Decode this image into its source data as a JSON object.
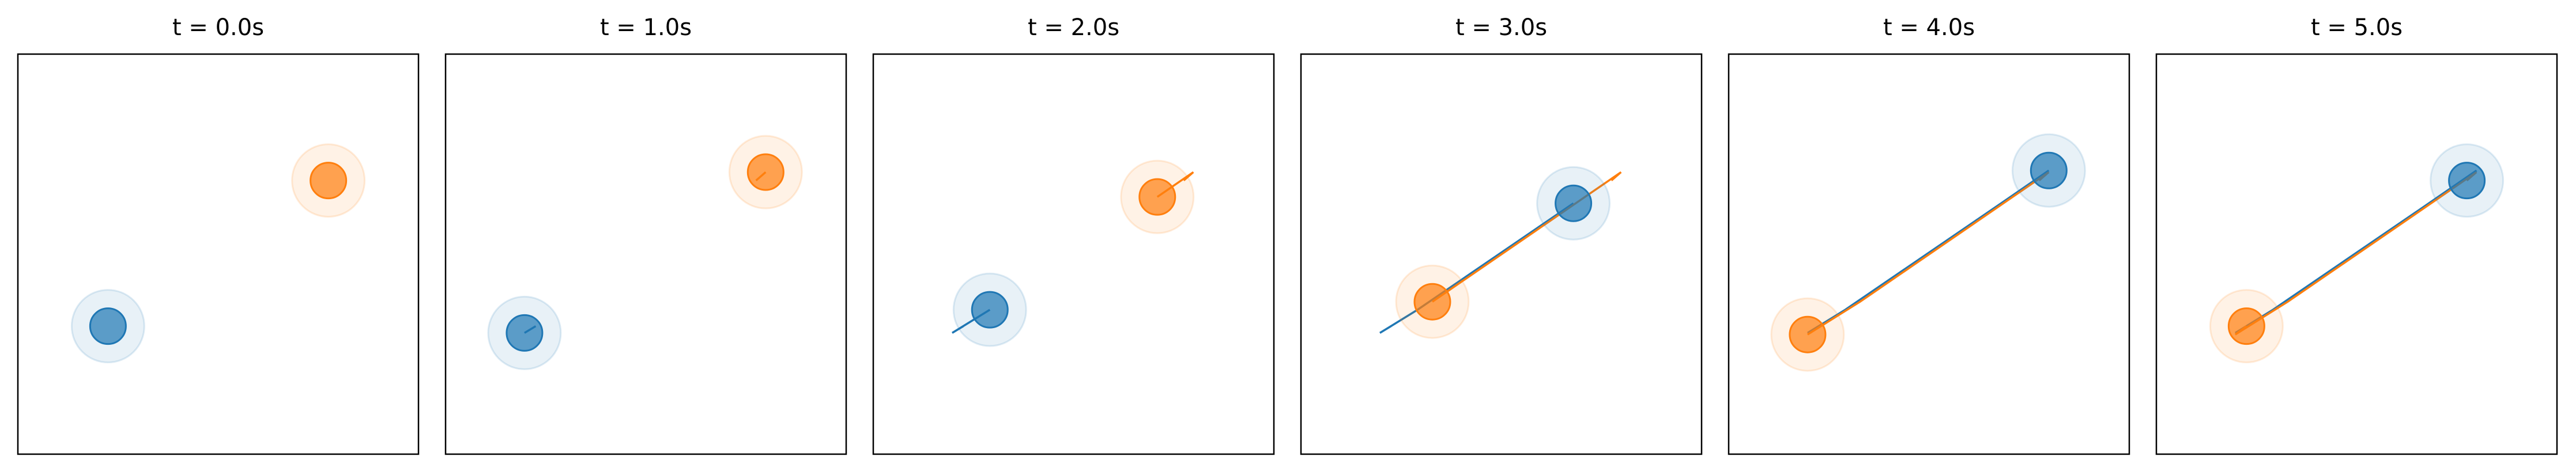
{
  "chart_data": [
    {
      "type": "scatter",
      "title": "t = 0.0s",
      "xlim": [
        0,
        1
      ],
      "ylim": [
        0,
        1
      ],
      "series": [
        {
          "color": "#1f77b4",
          "x": [
            0.225
          ],
          "y": [
            0.32
          ]
        },
        {
          "color": "#ff7f0e",
          "x": [
            0.775
          ],
          "y": [
            0.684
          ]
        }
      ]
    },
    {
      "type": "scatter",
      "title": "t = 1.0s",
      "xlim": [
        0,
        1
      ],
      "ylim": [
        0,
        1
      ],
      "series": [
        {
          "color": "#1f77b4",
          "x": [
            0.225,
            0.197
          ],
          "y": [
            0.32,
            0.303
          ]
        },
        {
          "color": "#ff7f0e",
          "x": [
            0.775,
            0.799
          ],
          "y": [
            0.684,
            0.705
          ]
        }
      ]
    },
    {
      "type": "scatter",
      "title": "t = 2.0s",
      "xlim": [
        0,
        1
      ],
      "ylim": [
        0,
        1
      ],
      "series": [
        {
          "color": "#1f77b4",
          "x": [
            0.225,
            0.197,
            0.291
          ],
          "y": [
            0.32,
            0.303,
            0.361
          ]
        },
        {
          "color": "#ff7f0e",
          "x": [
            0.775,
            0.799,
            0.709
          ],
          "y": [
            0.684,
            0.705,
            0.643
          ]
        }
      ]
    },
    {
      "type": "scatter",
      "title": "t = 3.0s",
      "xlim": [
        0,
        1
      ],
      "ylim": [
        0,
        1
      ],
      "series": [
        {
          "color": "#1f77b4",
          "x": [
            0.225,
            0.197,
            0.291,
            0.68
          ],
          "y": [
            0.32,
            0.303,
            0.361,
            0.627
          ]
        },
        {
          "color": "#ff7f0e",
          "x": [
            0.775,
            0.799,
            0.709,
            0.328
          ],
          "y": [
            0.684,
            0.705,
            0.643,
            0.381
          ]
        }
      ]
    },
    {
      "type": "scatter",
      "title": "t = 4.0s",
      "xlim": [
        0,
        1
      ],
      "ylim": [
        0,
        1
      ],
      "series": [
        {
          "color": "#1f77b4",
          "x": [
            0.225,
            0.197,
            0.291,
            0.68,
            0.799
          ],
          "y": [
            0.32,
            0.303,
            0.361,
            0.627,
            0.709
          ]
        },
        {
          "color": "#ff7f0e",
          "x": [
            0.775,
            0.799,
            0.709,
            0.328,
            0.197
          ],
          "y": [
            0.684,
            0.705,
            0.643,
            0.381,
            0.299
          ]
        }
      ]
    },
    {
      "type": "scatter",
      "title": "t = 5.0s",
      "xlim": [
        0,
        1
      ],
      "ylim": [
        0,
        1
      ],
      "series": [
        {
          "color": "#1f77b4",
          "x": [
            0.225,
            0.197,
            0.291,
            0.68,
            0.799,
            0.775
          ],
          "y": [
            0.32,
            0.303,
            0.361,
            0.627,
            0.709,
            0.684
          ]
        },
        {
          "color": "#ff7f0e",
          "x": [
            0.775,
            0.799,
            0.709,
            0.328,
            0.197,
            0.225
          ],
          "y": [
            0.684,
            0.705,
            0.643,
            0.381,
            0.299,
            0.32
          ]
        }
      ]
    }
  ]
}
